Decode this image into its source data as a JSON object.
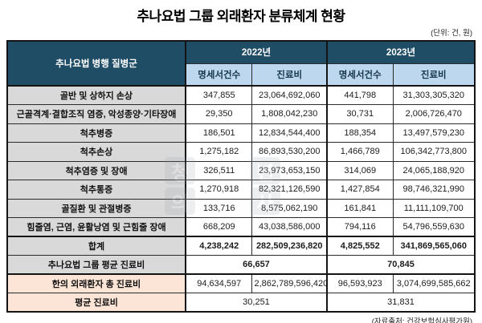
{
  "title": "추나요법 그룹 외래환자 분류체계 현황",
  "unit_note": "(단위: 건, 원)",
  "source_note": "(자료출처: 건강보험심사평가원)",
  "colors": {
    "header_bg": "#1F4D66",
    "subheader_bg": "#BDD7EE",
    "label_bg": "#D9D9D9",
    "highlight_bg": "#FCE4D6"
  },
  "table": {
    "row_header": "추나요법 병행 질병군",
    "year_headers": [
      "2022년",
      "2023년"
    ],
    "sub_headers": [
      "명세서건수",
      "진료비"
    ],
    "rows": [
      {
        "label": "골반 및 상하지 손상",
        "values": [
          "347,855",
          "23,064,692,060",
          "441,798",
          "31,303,305,320"
        ]
      },
      {
        "label": "근골격계·결합조직 염증, 악성종양·기타장애",
        "values": [
          "29,350",
          "1,808,042,230",
          "30,731",
          "2,006,726,470"
        ]
      },
      {
        "label": "척추병증",
        "values": [
          "186,501",
          "12,834,544,400",
          "188,354",
          "13,497,579,230"
        ]
      },
      {
        "label": "척추손상",
        "values": [
          "1,275,182",
          "86,893,530,200",
          "1,466,789",
          "106,342,773,800"
        ]
      },
      {
        "label": "척추염증 및 장애",
        "values": [
          "326,511",
          "23,973,653,150",
          "314,069",
          "24,065,188,920"
        ]
      },
      {
        "label": "척추통증",
        "values": [
          "1,270,918",
          "82,321,126,590",
          "1,427,854",
          "98,746,321,990"
        ]
      },
      {
        "label": "골질환 및 관절병증",
        "values": [
          "133,716",
          "8,575,062,190",
          "161,841",
          "11,111,109,700"
        ]
      },
      {
        "label": "힘줄염, 근염, 윤활낭염 및 근힘줄 장애",
        "values": [
          "668,209",
          "43,038,586,000",
          "794,116",
          "54,796,559,630"
        ]
      }
    ],
    "total_row": {
      "label": "합계",
      "values": [
        "4,238,242",
        "282,509,236,820",
        "4,825,552",
        "341,869,565,060"
      ]
    },
    "group_avg_row": {
      "label": "추나요법 그룹 평균 진료비",
      "values": [
        "66,657",
        "70,845"
      ]
    },
    "km_total_row": {
      "label": "한의 외래환자 총 진료비",
      "values": [
        "94,634,597",
        "2,862,789,596,420",
        "96,593,923",
        "3,074,699,585,662"
      ]
    },
    "avg_row": {
      "label": "평균 진료비",
      "values": [
        "30,251",
        "31,831"
      ]
    }
  },
  "watermark": {
    "chars": [
      "청",
      "년",
      "의",
      "사"
    ]
  }
}
